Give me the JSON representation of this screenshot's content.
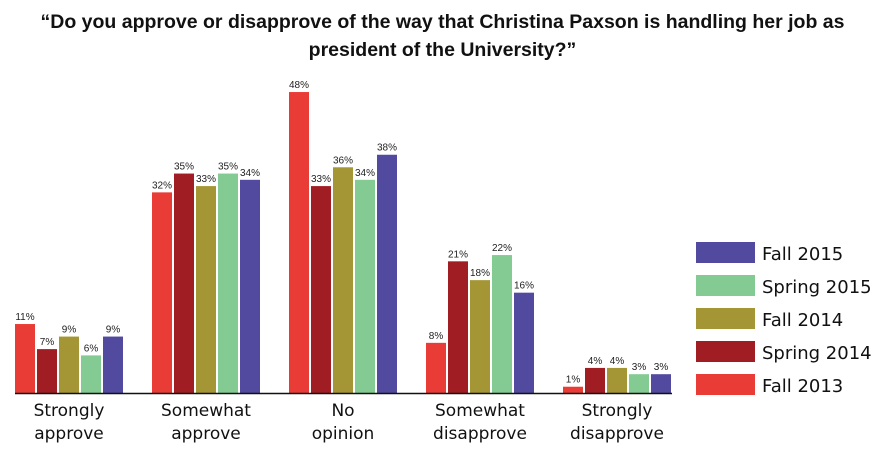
{
  "chart_data": {
    "type": "bar",
    "title": "“Do you approve or disapprove of the way that Christina Paxson is handling her job as president of the University?”",
    "categories": [
      [
        "Strongly",
        "approve"
      ],
      [
        "Somewhat",
        "approve"
      ],
      [
        "No",
        "opinion"
      ],
      [
        "Somewhat",
        "disapprove"
      ],
      [
        "Strongly",
        "disapprove"
      ]
    ],
    "series": [
      {
        "name": "Fall 2013",
        "color": "#e93c36",
        "values": [
          11,
          32,
          48,
          8,
          1
        ]
      },
      {
        "name": "Spring 2014",
        "color": "#a01d23",
        "values": [
          7,
          35,
          33,
          21,
          4
        ]
      },
      {
        "name": "Fall 2014",
        "color": "#a49634",
        "values": [
          9,
          33,
          36,
          18,
          4
        ]
      },
      {
        "name": "Spring 2015",
        "color": "#83cb93",
        "values": [
          6,
          35,
          34,
          22,
          3
        ]
      },
      {
        "name": "Fall 2015",
        "color": "#514a9e",
        "values": [
          9,
          34,
          38,
          16,
          3
        ]
      }
    ],
    "value_suffix": "%",
    "ylim": [
      0,
      50
    ],
    "grid": false,
    "legend": {
      "placement": "right",
      "order": [
        "Fall 2015",
        "Spring 2015",
        "Fall 2014",
        "Spring 2014",
        "Fall 2013"
      ]
    }
  }
}
